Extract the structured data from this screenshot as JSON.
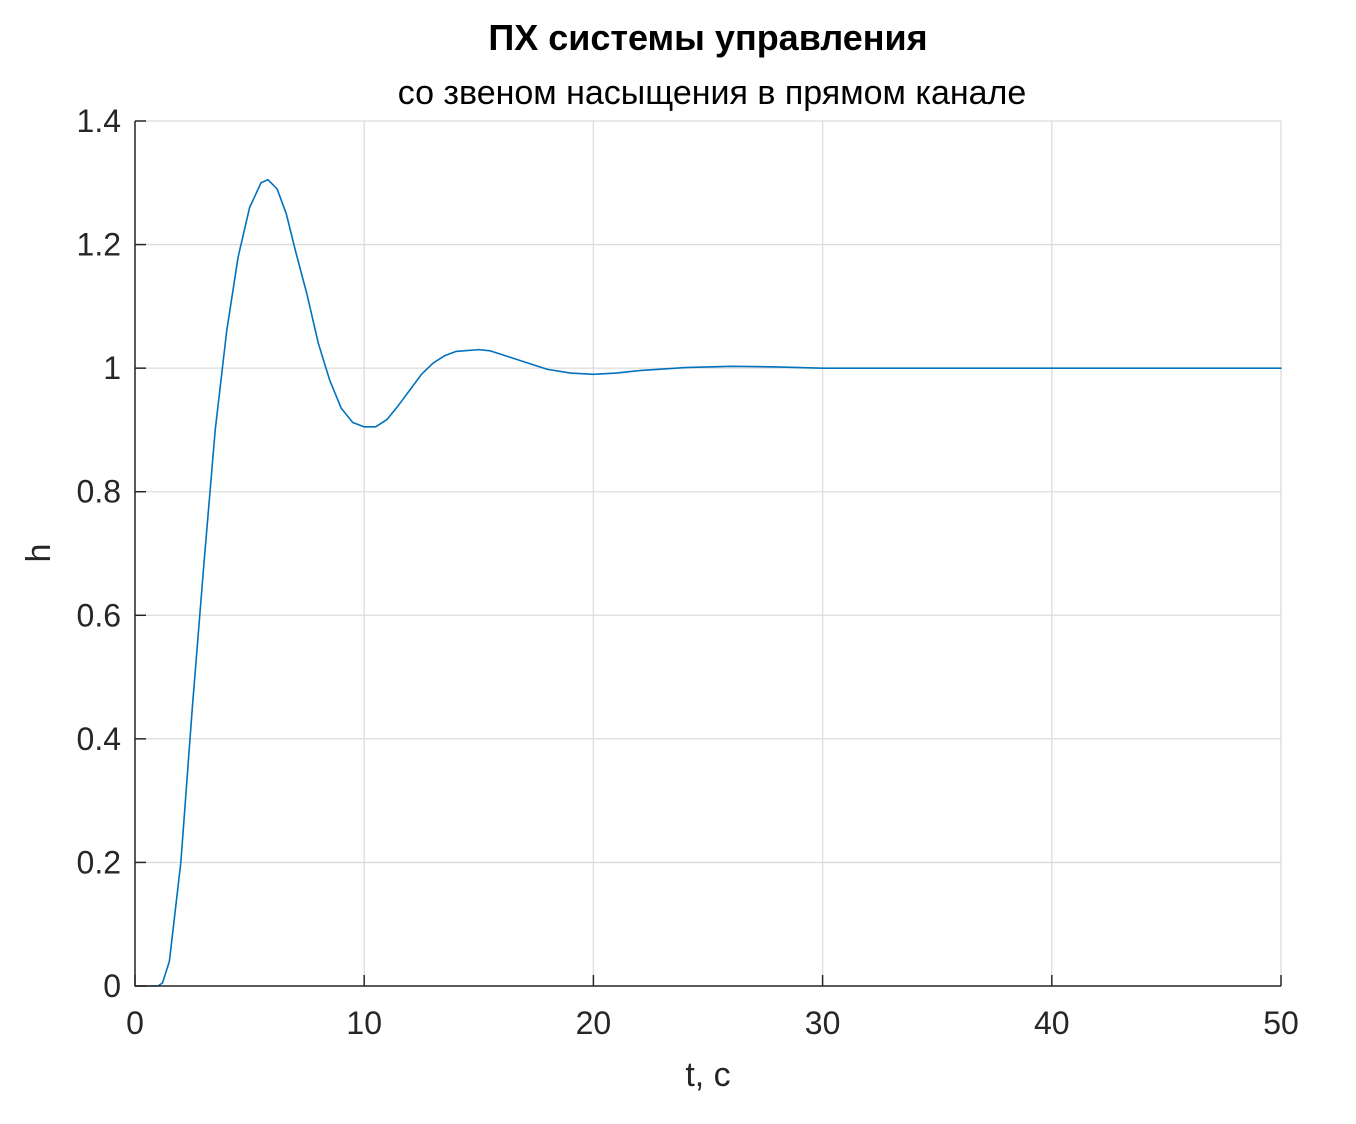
{
  "chart_data": {
    "type": "line",
    "title": "ПХ системы управления",
    "subtitle": "со звеном насыщения в прямом канале",
    "xlabel": "t, с",
    "ylabel": "h",
    "xlim": [
      0,
      50
    ],
    "ylim": [
      0,
      1.4
    ],
    "xticks": [
      0,
      10,
      20,
      30,
      40,
      50
    ],
    "xtick_labels": [
      "0",
      "10",
      "20",
      "30",
      "40",
      "50"
    ],
    "yticks": [
      0,
      0.2,
      0.4,
      0.6,
      0.8,
      1,
      1.2,
      1.4
    ],
    "ytick_labels": [
      "0",
      "0.2",
      "0.4",
      "0.6",
      "0.8",
      "1",
      "1.2",
      "1.4"
    ],
    "grid": true,
    "line_color": "#0072bd",
    "series": [
      {
        "x": [
          0,
          1,
          1.2,
          1.5,
          2,
          2.5,
          3,
          3.5,
          4,
          4.5,
          5,
          5.5,
          5.8,
          6.2,
          6.6,
          7,
          7.5,
          8,
          8.5,
          9,
          9.5,
          10,
          10.5,
          11,
          11.5,
          12,
          12.5,
          13,
          13.5,
          14,
          15,
          15.5,
          16,
          17,
          18,
          19,
          20,
          21,
          22,
          24,
          26,
          28,
          30,
          35,
          40,
          45,
          50
        ],
        "y": [
          0,
          0,
          0.005,
          0.04,
          0.2,
          0.45,
          0.68,
          0.9,
          1.06,
          1.18,
          1.26,
          1.3,
          1.305,
          1.29,
          1.25,
          1.19,
          1.12,
          1.04,
          0.98,
          0.935,
          0.912,
          0.905,
          0.905,
          0.917,
          0.94,
          0.965,
          0.99,
          1.008,
          1.02,
          1.027,
          1.03,
          1.028,
          1.022,
          1.01,
          0.998,
          0.992,
          0.99,
          0.992,
          0.996,
          1.001,
          1.003,
          1.002,
          1.0,
          1.0,
          1.0,
          1.0,
          1.0
        ]
      }
    ]
  }
}
